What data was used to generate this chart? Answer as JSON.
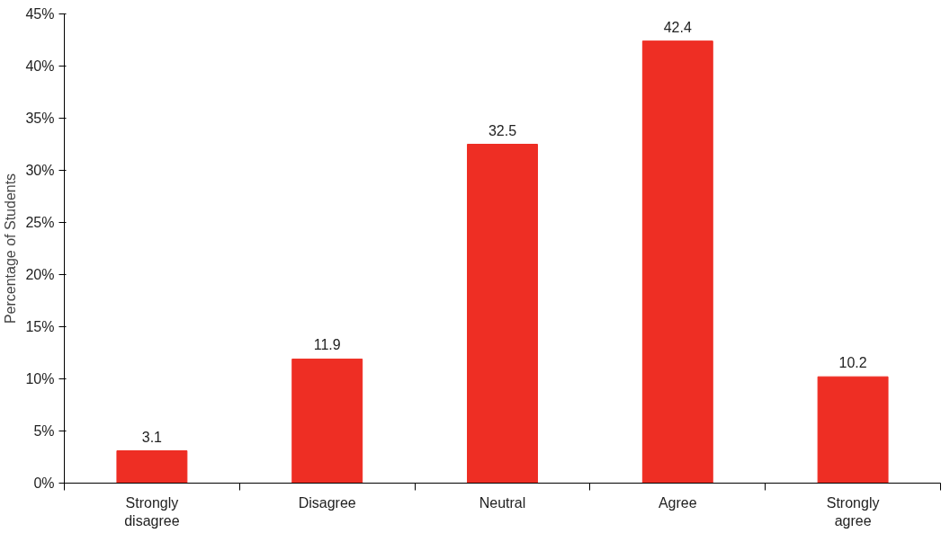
{
  "chart_data": {
    "type": "bar",
    "ylabel": "Percentage of Students",
    "categories": [
      "Strongly disagree",
      "Disagree",
      "Neutral",
      "Agree",
      "Strongly agree"
    ],
    "values": [
      3.1,
      11.9,
      32.5,
      42.4,
      10.2
    ],
    "color": "#ee2e24",
    "ylim": [
      0,
      45
    ],
    "yticks": [
      {
        "value": 0,
        "label": "0%"
      },
      {
        "value": 5,
        "label": "5%"
      },
      {
        "value": 10,
        "label": "10%"
      },
      {
        "value": 15,
        "label": "15%"
      },
      {
        "value": 20,
        "label": "20%"
      },
      {
        "value": 25,
        "label": "25%"
      },
      {
        "value": 30,
        "label": "30%"
      },
      {
        "value": 35,
        "label": "35%"
      },
      {
        "value": 40,
        "label": "40%"
      },
      {
        "value": 45,
        "label": "45%"
      }
    ],
    "data_labels": true
  }
}
